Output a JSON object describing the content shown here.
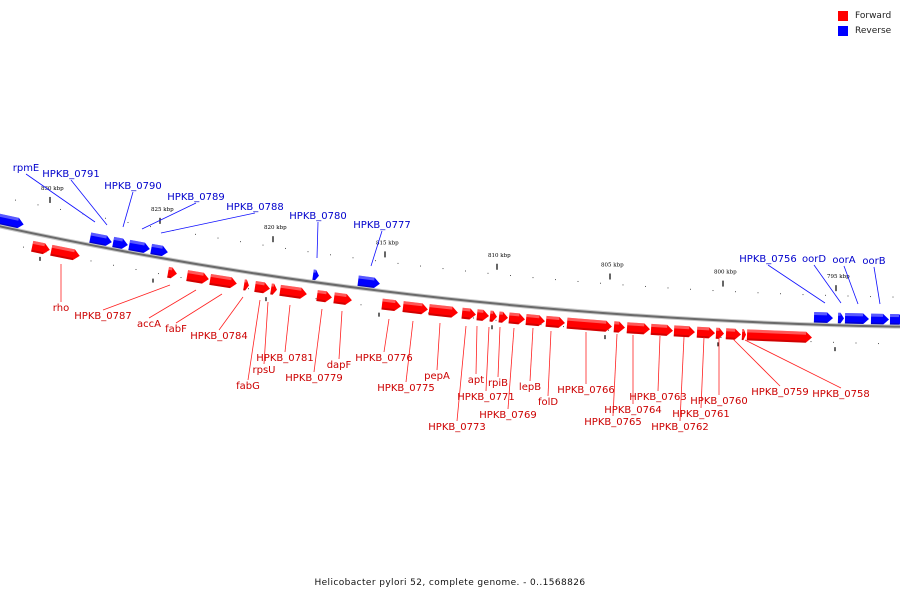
{
  "legend": {
    "forward_label": "Forward",
    "reverse_label": "Reverse",
    "forward_color": "#ff0000",
    "reverse_color": "#0000ff"
  },
  "caption": "Helicobacter pylori 52, complete genome. - 0..1568826",
  "strand_colors": {
    "forward": "#ff0000",
    "reverse": "#0000ff",
    "label_forward": "#cc0000",
    "label_reverse": "#0000cc"
  },
  "scale_labels": [
    "830 kbp",
    "825 kbp",
    "820 kbp",
    "815 kbp",
    "810 kbp",
    "805 kbp",
    "800 kbp",
    "795 kbp"
  ],
  "reverse_genes": [
    "rpmE",
    "HPKB_0791",
    "HPKB_0790",
    "HPKB_0789",
    "HPKB_0788",
    "HPKB_0780",
    "HPKB_0777",
    "HPKB_0756",
    "oorD",
    "oorA",
    "oorB"
  ],
  "forward_genes": [
    "rho",
    "HPKB_0787",
    "accA",
    "fabF",
    "HPKB_0784",
    "fabG",
    "rpsU",
    "HPKB_0781",
    "HPKB_0779",
    "dapF",
    "HPKB_0776",
    "HPKB_0775",
    "pepA",
    "apt",
    "HPKB_0773",
    "HPKB_0771",
    "rpiB",
    "HPKB_0769",
    "lepB",
    "folD",
    "HPKB_0766",
    "HPKB_0765",
    "HPKB_0764",
    "HPKB_0763",
    "HPKB_0762",
    "HPKB_0761",
    "HPKB_0760",
    "HPKB_0759",
    "HPKB_0758"
  ]
}
